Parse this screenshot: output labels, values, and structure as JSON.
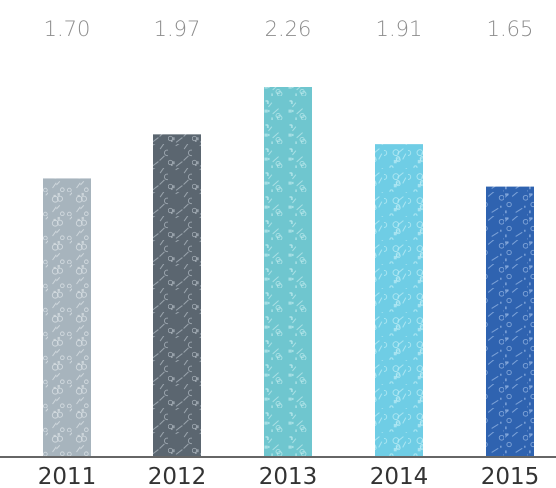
{
  "chart_data": {
    "type": "bar",
    "categories": [
      "2011",
      "2012",
      "2013",
      "2014",
      "2015"
    ],
    "values": [
      1.7,
      1.97,
      2.26,
      1.91,
      1.65
    ],
    "value_labels": [
      "1.70",
      "1.97",
      "2.26",
      "1.91",
      "1.65"
    ],
    "bar_colors": [
      "#a7b4bd",
      "#5b6670",
      "#6fc6cf",
      "#6fcde5",
      "#2f63b0"
    ],
    "bar_texture_colors": [
      "#d9e0e4",
      "#a9b3bb",
      "#b8e6ea",
      "#b9ebf5",
      "#8fb0e0"
    ],
    "baseline_color": "#333333",
    "ylim": [
      0,
      2.26
    ],
    "grid": false,
    "legend": "none"
  }
}
